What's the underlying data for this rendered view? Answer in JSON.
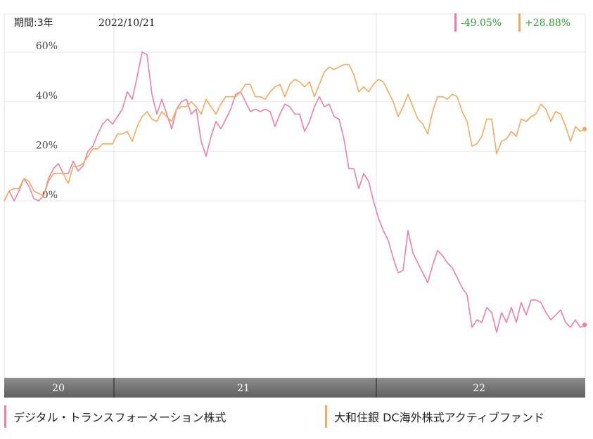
{
  "header": {
    "period_label": "期間:3年",
    "date_label": "2022/10/21"
  },
  "colors": {
    "series_1": "#ee7fa3",
    "series_2": "#f5a95c",
    "gain_text": "#2e9e33",
    "axis_band": "#7a7a7a"
  },
  "chart_data": {
    "type": "line",
    "ylabel": "",
    "y_ticks": [
      "60%",
      "40%",
      "20%",
      "0%"
    ],
    "y_tick_values": [
      60,
      40,
      20,
      0
    ],
    "ylim": [
      -70,
      68
    ],
    "x_period_labels": [
      "20",
      "21",
      "22"
    ],
    "grid": true,
    "series": [
      {
        "name": "デジタル・トランスフォーメーション株式",
        "return_label": "-49.05%",
        "values": [
          0,
          4,
          0,
          4,
          9,
          6,
          1,
          0,
          2,
          9,
          13,
          15,
          11,
          11,
          16,
          12,
          14,
          20,
          22,
          27,
          31,
          33,
          31,
          34,
          37,
          44,
          41,
          50,
          60,
          59,
          43,
          35,
          41,
          35,
          29,
          37,
          40,
          41,
          35,
          37,
          24,
          18,
          26,
          32,
          29,
          33,
          37,
          43,
          44,
          40,
          36,
          37,
          36,
          37,
          36,
          30,
          35,
          39,
          38,
          35,
          35,
          28,
          32,
          38,
          42,
          38,
          39,
          34,
          33,
          25,
          13,
          13,
          5,
          11,
          8,
          0,
          -7,
          -12,
          -16,
          -23,
          -29,
          -28,
          -12,
          -21,
          -25,
          -29,
          -33,
          -26,
          -20,
          -22,
          -25,
          -27,
          -31,
          -35,
          -38,
          -51,
          -48,
          -49,
          -43,
          -45,
          -53,
          -45,
          -49,
          -43,
          -49,
          -41,
          -46,
          -40,
          -40,
          -41,
          -45,
          -48,
          -46,
          -44,
          -49,
          -51,
          -48,
          -51,
          -50
        ]
      },
      {
        "name": "大和住銀 DC海外株式アクティブファンド",
        "return_label": "+28.88%",
        "values": [
          0,
          4,
          5,
          5,
          9,
          8,
          4,
          3,
          2,
          8,
          11,
          11,
          11,
          7,
          14,
          14,
          15,
          18,
          21,
          21,
          23,
          23,
          23,
          27,
          27,
          28,
          24,
          30,
          34,
          36,
          33,
          32,
          36,
          34,
          32,
          37,
          38,
          38,
          40,
          38,
          35,
          41,
          38,
          35,
          39,
          42,
          42,
          42,
          44,
          47,
          47,
          42,
          42,
          41,
          44,
          46,
          47,
          42,
          47,
          49,
          48,
          46,
          48,
          42,
          47,
          52,
          54,
          53,
          54,
          55,
          55,
          51,
          44,
          46,
          44,
          47,
          49,
          48,
          44,
          40,
          34,
          38,
          43,
          38,
          33,
          31,
          27,
          36,
          42,
          42,
          41,
          43,
          42,
          36,
          32,
          22,
          23,
          26,
          33,
          33,
          19,
          24,
          25,
          28,
          26,
          33,
          32,
          34,
          35,
          39,
          37,
          32,
          36,
          35,
          30,
          24,
          30,
          28,
          29
        ]
      }
    ]
  },
  "legend": [
    {
      "label": "デジタル・トランスフォーメーション株式"
    },
    {
      "label": "大和住銀 DC海外株式アクティブファンド"
    }
  ]
}
